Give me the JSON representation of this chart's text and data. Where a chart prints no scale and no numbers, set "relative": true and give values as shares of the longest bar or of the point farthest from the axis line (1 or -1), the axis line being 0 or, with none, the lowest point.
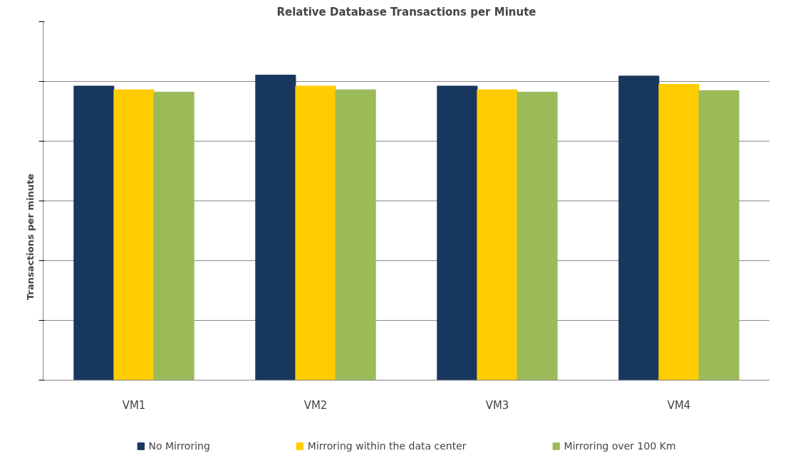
{
  "chart_data": {
    "type": "bar",
    "title": "Relative Database Transactions per Minute",
    "ylabel": "Transactions per minute",
    "categories": [
      "VM1",
      "VM2",
      "VM3",
      "VM4"
    ],
    "relative": true,
    "grid": "y",
    "legend": "bottom",
    "series": [
      {
        "name": "No Mirroring",
        "color": "#17375e",
        "values": [
          0.964,
          1.0,
          0.964,
          0.997
        ]
      },
      {
        "name": "Mirroring within the data center",
        "color": "#ffcc00",
        "values": [
          0.952,
          0.964,
          0.952,
          0.97
        ]
      },
      {
        "name": "Mirroring over 100 Km",
        "color": "#9bbb59",
        "values": [
          0.944,
          0.952,
          0.944,
          0.949
        ]
      }
    ]
  }
}
